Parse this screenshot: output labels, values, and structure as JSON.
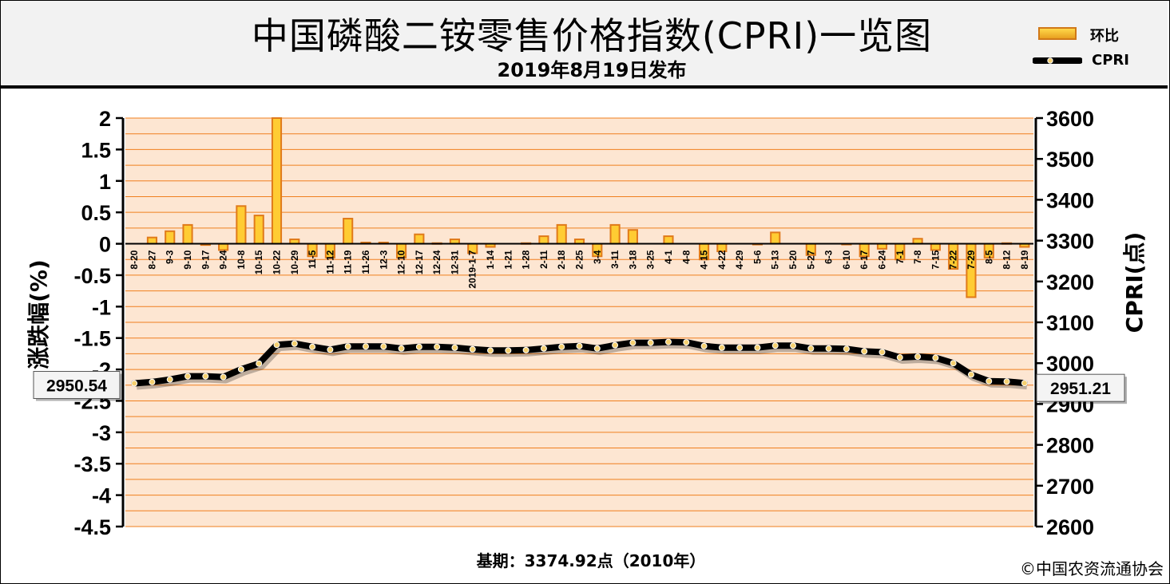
{
  "header": {
    "title": "中国磷酸二铵零售价格指数(CPRI)一览图",
    "subtitle": "2019年8月19日发布"
  },
  "legend": {
    "bar_label": "环比",
    "line_label": "CPRI"
  },
  "footer": {
    "base_period": "基期：3374.92点（2010年）",
    "copyright": "©中国农资流通协会"
  },
  "colors": {
    "plot_bg": "#fde6d2",
    "grid": "#f07f1e",
    "bar_fill": "#ffcc33",
    "bar_edge": "#e07a1a",
    "line": "#000000",
    "marker": "#f5d070"
  },
  "chart_data": {
    "type": "bar+line",
    "title": "中国磷酸二铵零售价格指数(CPRI)一览图",
    "subtitle": "2019年8月19日发布",
    "ylabel_left": "涨跌幅(%)",
    "ylabel_right": "CPRI(点)",
    "ylim_left": [
      -4.5,
      2
    ],
    "yticks_left": [
      "2",
      "1.5",
      "1",
      "0.5",
      "0",
      "-0.5",
      "-1",
      "-1.5",
      "-2",
      "-2.5",
      "-3",
      "-3.5",
      "-4",
      "-4.5"
    ],
    "ylim_right": [
      2600,
      3600
    ],
    "yticks_right": [
      "3600",
      "3500",
      "3400",
      "3300",
      "3200",
      "3100",
      "3000",
      "2900",
      "2800",
      "2700",
      "2600"
    ],
    "grid": true,
    "legend_position": "top-right",
    "categories": [
      "8-20",
      "8-27",
      "9-3",
      "9-10",
      "9-17",
      "9-24",
      "10-8",
      "10-15",
      "10-22",
      "10-29",
      "11-5",
      "11-12",
      "11-19",
      "11-26",
      "12-3",
      "12-10",
      "12-17",
      "12-24",
      "12-31",
      "2019-1-7",
      "1-14",
      "1-21",
      "1-28",
      "2-11",
      "2-18",
      "2-25",
      "3-4",
      "3-11",
      "3-18",
      "3-25",
      "4-1",
      "4-8",
      "4-15",
      "4-22",
      "4-29",
      "5-6",
      "5-13",
      "5-20",
      "5-27",
      "6-3",
      "6-10",
      "6-17",
      "6-24",
      "7-1",
      "7-8",
      "7-15",
      "7-22",
      "7-29",
      "8-5",
      "8-12",
      "8-19"
    ],
    "series": [
      {
        "name": "环比",
        "axis": "left",
        "type": "bar",
        "values": [
          0,
          0.1,
          0.2,
          0.3,
          -0.02,
          -0.1,
          0.6,
          0.45,
          2.0,
          0.07,
          -0.2,
          -0.22,
          0.4,
          0.02,
          0.02,
          -0.22,
          0.15,
          0.01,
          0.07,
          -0.15,
          -0.05,
          0,
          0.01,
          0.12,
          0.3,
          0.07,
          -0.2,
          0.3,
          0.22,
          0,
          0.12,
          0,
          -0.25,
          -0.12,
          0,
          -0.01,
          0.18,
          0,
          -0.18,
          0,
          -0.01,
          -0.2,
          -0.08,
          -0.25,
          0.08,
          -0.1,
          -0.4,
          -0.85,
          -0.22,
          0.01,
          -0.05
        ]
      },
      {
        "name": "CPRI",
        "axis": "right",
        "type": "line",
        "values": [
          2950.54,
          2954,
          2960,
          2968,
          2968,
          2966,
          2985,
          2999,
          3045,
          3048,
          3040,
          3033,
          3041,
          3041,
          3041,
          3036,
          3040,
          3040,
          3038,
          3034,
          3031,
          3031,
          3032,
          3036,
          3040,
          3042,
          3036,
          3044,
          3050,
          3050,
          3052,
          3051,
          3042,
          3038,
          3038,
          3038,
          3043,
          3043,
          3036,
          3036,
          3035,
          3029,
          3027,
          3014,
          3016,
          3013,
          3000,
          2972,
          2956,
          2955,
          2951.21
        ]
      }
    ],
    "annotations": [
      "2950.54",
      "2951.21"
    ]
  }
}
